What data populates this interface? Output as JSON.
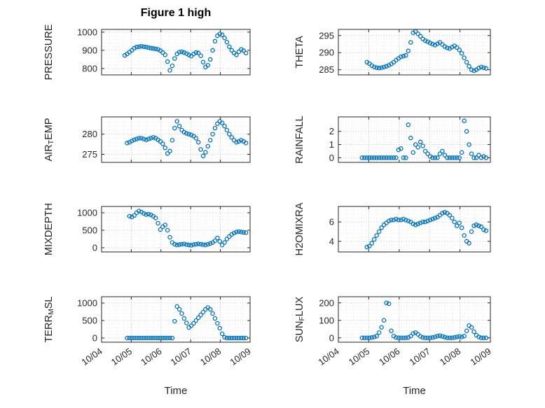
{
  "title": "Figure 1 high",
  "chart_meta": {
    "xlabel": "Time",
    "xlim": [
      4,
      9
    ],
    "x_ticks": [
      4,
      5,
      6,
      7,
      8,
      9
    ],
    "x_tick_labels": [
      "10/04",
      "10/05",
      "10/06",
      "10/07",
      "10/08",
      "10/09"
    ],
    "marker_color": "#0072BD",
    "axis_color": "#262626",
    "grid_style": "dotted",
    "x_values": [
      4.78,
      4.86,
      4.94,
      5.02,
      5.1,
      5.18,
      5.26,
      5.34,
      5.42,
      5.5,
      5.58,
      5.66,
      5.74,
      5.82,
      5.9,
      5.98,
      6.06,
      6.14,
      6.22,
      6.3,
      6.38,
      6.46,
      6.54,
      6.62,
      6.7,
      6.78,
      6.86,
      6.94,
      7.02,
      7.1,
      7.18,
      7.26,
      7.34,
      7.42,
      7.5,
      7.58,
      7.66,
      7.74,
      7.82,
      7.9,
      7.98,
      8.06,
      8.14,
      8.22,
      8.3,
      8.38,
      8.46,
      8.54,
      8.62,
      8.7,
      8.78,
      8.86
    ]
  },
  "chart_data": [
    {
      "type": "scatter",
      "name": "PRESSURE",
      "row": 0,
      "col": 0,
      "label": {
        "pre": "PRESSURE",
        "sub": "",
        "post": ""
      },
      "ylim": [
        765,
        1015
      ],
      "yticks": [
        800,
        900,
        1000
      ],
      "values": [
        872,
        880,
        890,
        900,
        912,
        918,
        920,
        922,
        920,
        918,
        915,
        912,
        910,
        908,
        905,
        898,
        888,
        875,
        838,
        790,
        815,
        855,
        880,
        890,
        892,
        888,
        882,
        875,
        868,
        880,
        888,
        885,
        870,
        835,
        808,
        818,
        850,
        900,
        950,
        980,
        990,
        985,
        968,
        945,
        920,
        900,
        885,
        875,
        892,
        905,
        898,
        885
      ]
    },
    {
      "type": "scatter",
      "name": "THETA",
      "row": 0,
      "col": 1,
      "label": {
        "pre": "THETA",
        "sub": "",
        "post": ""
      },
      "ylim": [
        283.5,
        296.8
      ],
      "yticks": [
        285,
        290,
        295
      ],
      "values": [
        null,
        null,
        287.2,
        286.8,
        286.2,
        285.8,
        285.6,
        285.5,
        285.6,
        285.8,
        286.0,
        286.3,
        286.7,
        287.2,
        287.8,
        288.3,
        288.8,
        289.0,
        289.2,
        290.5,
        293.0,
        295.8,
        296.2,
        295.5,
        294.8,
        294.0,
        293.5,
        293.2,
        292.8,
        292.5,
        292.2,
        292.6,
        293.0,
        292.4,
        291.8,
        291.4,
        291.2,
        291.6,
        292.0,
        291.5,
        290.8,
        289.8,
        288.5,
        287.2,
        286.0,
        285.0,
        284.7,
        285.0,
        285.5,
        285.8,
        285.6,
        285.4
      ]
    },
    {
      "type": "scatter",
      "name": "AIR_TEMP",
      "row": 1,
      "col": 0,
      "label": {
        "pre": "AIR",
        "sub": "T",
        "post": "EMP"
      },
      "ylim": [
        273,
        284.3
      ],
      "yticks": [
        275,
        280
      ],
      "values": [
        null,
        277.8,
        278.0,
        278.3,
        278.6,
        278.8,
        279.0,
        279.0,
        278.8,
        278.6,
        278.8,
        279.0,
        279.2,
        279.0,
        278.6,
        278.2,
        277.6,
        276.6,
        275.2,
        275.8,
        278.5,
        281.5,
        283.2,
        282.0,
        281.0,
        280.5,
        280.2,
        280.0,
        279.8,
        279.5,
        279.0,
        278.0,
        276.2,
        274.6,
        275.5,
        277.0,
        278.5,
        280.0,
        281.5,
        282.6,
        283.2,
        282.8,
        282.0,
        281.0,
        280.0,
        279.2,
        278.5,
        278.0,
        278.2,
        278.5,
        278.2,
        277.8
      ]
    },
    {
      "type": "scatter",
      "name": "RAINFALL",
      "row": 1,
      "col": 1,
      "label": {
        "pre": "RAINFALL",
        "sub": "",
        "post": ""
      },
      "ylim": [
        -0.35,
        3.1
      ],
      "yticks": [
        0,
        1,
        2
      ],
      "values": [
        0,
        0,
        0,
        0,
        0,
        0,
        0,
        0,
        0,
        0,
        0,
        0,
        0,
        0,
        0,
        0.6,
        0.7,
        0,
        0,
        2.5,
        1.5,
        0.4,
        1.0,
        0.8,
        1.2,
        0.9,
        0.5,
        0.3,
        0.1,
        0,
        0,
        0,
        0.3,
        0.5,
        0.2,
        0,
        0,
        0,
        0,
        0,
        0,
        0.4,
        2.8,
        2.0,
        1.0,
        0.3,
        0,
        0,
        0.2,
        0,
        0.1,
        0
      ]
    },
    {
      "type": "scatter",
      "name": "MIXDEPTH",
      "row": 2,
      "col": 0,
      "label": {
        "pre": "MIXDEPTH",
        "sub": "",
        "post": ""
      },
      "ylim": [
        -120,
        1180
      ],
      "yticks": [
        0,
        500,
        1000
      ],
      "values": [
        null,
        null,
        900,
        880,
        920,
        1000,
        1050,
        1020,
        980,
        950,
        960,
        940,
        900,
        850,
        700,
        520,
        600,
        650,
        500,
        300,
        150,
        100,
        80,
        90,
        100,
        110,
        90,
        80,
        70,
        90,
        100,
        110,
        100,
        90,
        80,
        100,
        120,
        150,
        200,
        280,
        180,
        80,
        150,
        250,
        320,
        380,
        420,
        450,
        460,
        450,
        440,
        430
      ]
    },
    {
      "type": "scatter",
      "name": "H2OMIXRA",
      "row": 2,
      "col": 1,
      "label": {
        "pre": "H2OMIXRA",
        "sub": "",
        "post": ""
      },
      "ylim": [
        2.9,
        7.6
      ],
      "yticks": [
        4,
        6
      ],
      "values": [
        null,
        null,
        3.4,
        3.5,
        3.8,
        4.2,
        4.6,
        5.0,
        5.4,
        5.7,
        5.9,
        6.1,
        6.2,
        6.2,
        6.3,
        6.2,
        6.2,
        6.3,
        6.2,
        6.1,
        6.0,
        5.8,
        5.7,
        5.8,
        5.9,
        6.0,
        6.0,
        6.1,
        6.2,
        6.3,
        6.4,
        6.5,
        6.7,
        6.9,
        7.0,
        6.9,
        6.7,
        6.4,
        6.0,
        5.6,
        5.9,
        5.4,
        4.6,
        4.0,
        3.8,
        5.0,
        5.6,
        5.7,
        5.6,
        5.5,
        5.2,
        5.1
      ]
    },
    {
      "type": "scatter",
      "name": "TERR_MSL",
      "row": 3,
      "col": 0,
      "label": {
        "pre": "TERR",
        "sub": "M",
        "post": "SL"
      },
      "ylim": [
        -120,
        1180
      ],
      "yticks": [
        0,
        500,
        1000
      ],
      "values": [
        null,
        0,
        0,
        0,
        0,
        0,
        0,
        0,
        0,
        0,
        0,
        0,
        0,
        0,
        0,
        0,
        0,
        0,
        0,
        0,
        0,
        480,
        900,
        820,
        700,
        560,
        430,
        300,
        350,
        420,
        500,
        580,
        660,
        740,
        820,
        870,
        820,
        700,
        560,
        420,
        280,
        120,
        20,
        0,
        0,
        0,
        0,
        0,
        0,
        0,
        0,
        0
      ]
    },
    {
      "type": "scatter",
      "name": "SUN_FLUX",
      "row": 3,
      "col": 1,
      "label": {
        "pre": "SUN",
        "sub": "F",
        "post": "LUX"
      },
      "ylim": [
        -25,
        235
      ],
      "yticks": [
        0,
        100,
        200
      ],
      "values": [
        0,
        0,
        0,
        0,
        2,
        5,
        10,
        30,
        60,
        100,
        200,
        195,
        40,
        10,
        2,
        0,
        0,
        0,
        0,
        2,
        10,
        25,
        30,
        20,
        8,
        2,
        0,
        0,
        0,
        2,
        5,
        10,
        12,
        8,
        4,
        0,
        0,
        0,
        2,
        5,
        8,
        5,
        10,
        40,
        70,
        60,
        35,
        15,
        5,
        0,
        0,
        0
      ]
    }
  ]
}
